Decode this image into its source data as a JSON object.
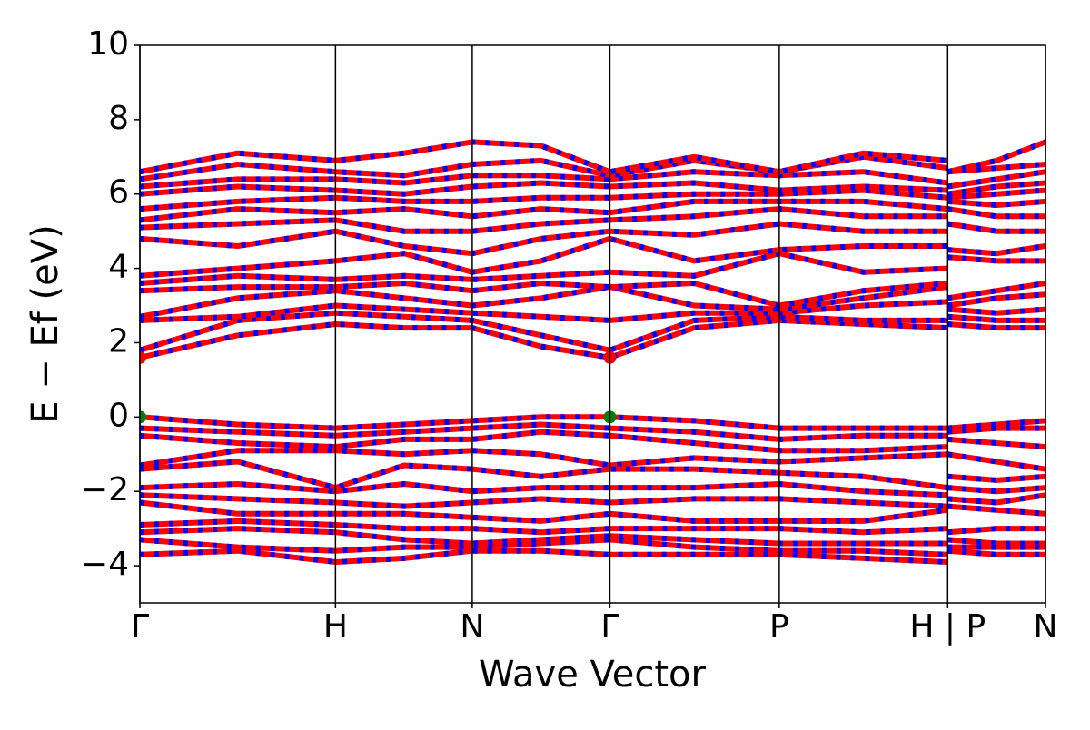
{
  "chart_data": {
    "type": "line",
    "xlabel": "Wave Vector",
    "ylabel": "E − Ef (eV)",
    "xlim": [
      0,
      1.0
    ],
    "ylim": [
      -5,
      10
    ],
    "xticks": [
      {
        "value": 0,
        "label": "Γ"
      },
      {
        "value": 0.216,
        "label": "H"
      },
      {
        "value": 0.367,
        "label": "N"
      },
      {
        "value": 0.519,
        "label": "Γ"
      },
      {
        "value": 0.706,
        "label": "P"
      },
      {
        "value": 0.892,
        "label": "H | P"
      },
      {
        "value": 1.0,
        "label": "N"
      }
    ],
    "yticks": [
      {
        "value": -4,
        "label": "−4"
      },
      {
        "value": -2,
        "label": "−2"
      },
      0,
      2,
      4,
      6,
      8,
      10
    ],
    "xgrid": true,
    "line_color": "#ff0000",
    "dash_color": "#0000ff",
    "x": [
      0,
      0.108,
      0.216,
      0.292,
      0.367,
      0.443,
      0.519,
      0.612,
      0.706,
      0.799,
      0.892,
      0.892,
      0.946,
      1.0
    ],
    "series": [
      {
        "values": [
          1.6,
          2.2,
          2.5,
          2.4,
          2.4,
          1.9,
          1.6,
          2.4,
          2.6,
          2.5,
          2.4,
          2.5,
          2.4,
          2.4
        ]
      },
      {
        "values": [
          1.8,
          2.6,
          2.8,
          2.7,
          2.6,
          2.2,
          1.8,
          2.6,
          2.7,
          2.6,
          2.6,
          2.7,
          2.6,
          2.6
        ]
      },
      {
        "values": [
          2.6,
          2.7,
          3.0,
          2.9,
          2.8,
          2.7,
          2.6,
          2.8,
          2.8,
          3.0,
          3.1,
          2.9,
          2.8,
          2.9
        ]
      },
      {
        "values": [
          2.7,
          3.2,
          3.4,
          3.2,
          3.0,
          3.2,
          3.5,
          3.0,
          2.9,
          3.2,
          3.5,
          3.0,
          3.2,
          3.3
        ]
      },
      {
        "values": [
          3.4,
          3.5,
          3.5,
          3.6,
          3.4,
          3.6,
          3.5,
          3.6,
          3.0,
          3.4,
          3.6,
          3.2,
          3.4,
          3.6
        ]
      },
      {
        "values": [
          3.6,
          3.8,
          3.7,
          3.8,
          3.7,
          3.8,
          3.9,
          3.8,
          4.4,
          3.9,
          4.0,
          4.3,
          4.2,
          4.2
        ]
      },
      {
        "values": [
          3.8,
          4.0,
          4.2,
          4.4,
          3.9,
          4.2,
          4.8,
          4.2,
          4.5,
          4.6,
          4.6,
          4.5,
          4.4,
          4.6
        ]
      },
      {
        "values": [
          4.8,
          4.6,
          5.0,
          4.6,
          4.4,
          4.8,
          5.0,
          4.9,
          5.2,
          5.0,
          5.0,
          5.2,
          5.0,
          5.0
        ]
      },
      {
        "values": [
          5.1,
          5.2,
          5.3,
          5.0,
          5.0,
          5.2,
          5.3,
          5.4,
          5.6,
          5.4,
          5.4,
          5.6,
          5.4,
          5.4
        ]
      },
      {
        "values": [
          5.3,
          5.6,
          5.5,
          5.6,
          5.4,
          5.6,
          5.5,
          5.8,
          5.8,
          5.8,
          5.6,
          5.8,
          5.7,
          5.8
        ]
      },
      {
        "values": [
          5.6,
          5.8,
          5.9,
          5.8,
          5.8,
          5.9,
          5.9,
          6.0,
          6.0,
          6.1,
          5.9,
          5.9,
          6.0,
          6.1
        ]
      },
      {
        "values": [
          6.0,
          6.2,
          6.1,
          6.0,
          6.2,
          6.3,
          6.2,
          6.3,
          6.1,
          6.2,
          6.1,
          6.0,
          6.2,
          6.3
        ]
      },
      {
        "values": [
          6.2,
          6.4,
          6.4,
          6.3,
          6.5,
          6.5,
          6.4,
          6.6,
          6.5,
          6.6,
          6.3,
          6.2,
          6.4,
          6.6
        ]
      },
      {
        "values": [
          6.4,
          6.8,
          6.6,
          6.5,
          6.8,
          6.9,
          6.5,
          6.9,
          6.6,
          7.0,
          6.7,
          6.6,
          6.7,
          6.8
        ]
      },
      {
        "values": [
          6.6,
          7.1,
          6.9,
          7.1,
          7.4,
          7.3,
          6.6,
          7.0,
          6.6,
          7.1,
          6.9,
          6.6,
          6.9,
          7.4
        ]
      },
      {
        "values": [
          0.0,
          -0.2,
          -0.3,
          -0.2,
          -0.1,
          0.0,
          0.0,
          -0.1,
          -0.3,
          -0.3,
          -0.3,
          -0.3,
          -0.2,
          -0.1
        ]
      },
      {
        "values": [
          -0.3,
          -0.4,
          -0.5,
          -0.4,
          -0.3,
          -0.2,
          -0.3,
          -0.4,
          -0.6,
          -0.5,
          -0.5,
          -0.4,
          -0.3,
          -0.3
        ]
      },
      {
        "values": [
          -0.5,
          -0.7,
          -0.8,
          -0.6,
          -0.6,
          -0.4,
          -0.5,
          -0.7,
          -0.9,
          -0.9,
          -0.8,
          -0.6,
          -0.7,
          -0.8
        ]
      },
      {
        "values": [
          -1.3,
          -0.9,
          -0.9,
          -1.0,
          -0.9,
          -1.0,
          -1.3,
          -1.1,
          -1.2,
          -1.1,
          -1.0,
          -1.0,
          -1.2,
          -1.4
        ]
      },
      {
        "values": [
          -1.4,
          -1.2,
          -1.9,
          -1.3,
          -1.4,
          -1.6,
          -1.4,
          -1.4,
          -1.5,
          -1.6,
          -1.9,
          -1.6,
          -1.7,
          -1.6
        ]
      },
      {
        "values": [
          -1.9,
          -1.8,
          -2.0,
          -1.8,
          -2.0,
          -1.9,
          -1.9,
          -1.9,
          -1.8,
          -2.0,
          -2.1,
          -1.9,
          -2.0,
          -1.9
        ]
      },
      {
        "values": [
          -2.1,
          -2.2,
          -2.3,
          -2.4,
          -2.3,
          -2.2,
          -2.3,
          -2.2,
          -2.2,
          -2.3,
          -2.4,
          -2.2,
          -2.3,
          -2.1
        ]
      },
      {
        "values": [
          -2.3,
          -2.6,
          -2.6,
          -2.6,
          -2.7,
          -2.8,
          -2.6,
          -2.8,
          -2.8,
          -2.8,
          -2.5,
          -2.4,
          -2.5,
          -2.6
        ]
      },
      {
        "values": [
          -2.9,
          -2.8,
          -2.9,
          -3.0,
          -3.0,
          -3.1,
          -3.0,
          -3.0,
          -3.0,
          -3.1,
          -3.0,
          -3.1,
          -3.0,
          -3.0
        ]
      },
      {
        "values": [
          -3.1,
          -3.0,
          -3.1,
          -3.3,
          -3.4,
          -3.3,
          -3.2,
          -3.3,
          -3.4,
          -3.4,
          -3.4,
          -3.3,
          -3.4,
          -3.4
        ]
      },
      {
        "values": [
          -3.3,
          -3.5,
          -3.6,
          -3.5,
          -3.5,
          -3.4,
          -3.3,
          -3.5,
          -3.6,
          -3.6,
          -3.7,
          -3.5,
          -3.5,
          -3.5
        ]
      },
      {
        "values": [
          -3.7,
          -3.6,
          -3.9,
          -3.8,
          -3.6,
          -3.6,
          -3.7,
          -3.7,
          -3.7,
          -3.8,
          -3.9,
          -3.6,
          -3.7,
          -3.7
        ]
      }
    ],
    "points": [
      {
        "color": "#ff0000",
        "x": [
          0,
          0.519
        ],
        "values": [
          1.6,
          1.6
        ]
      },
      {
        "color": "#008000",
        "x": [
          0,
          0.519
        ],
        "values": [
          0,
          0
        ]
      }
    ]
  }
}
